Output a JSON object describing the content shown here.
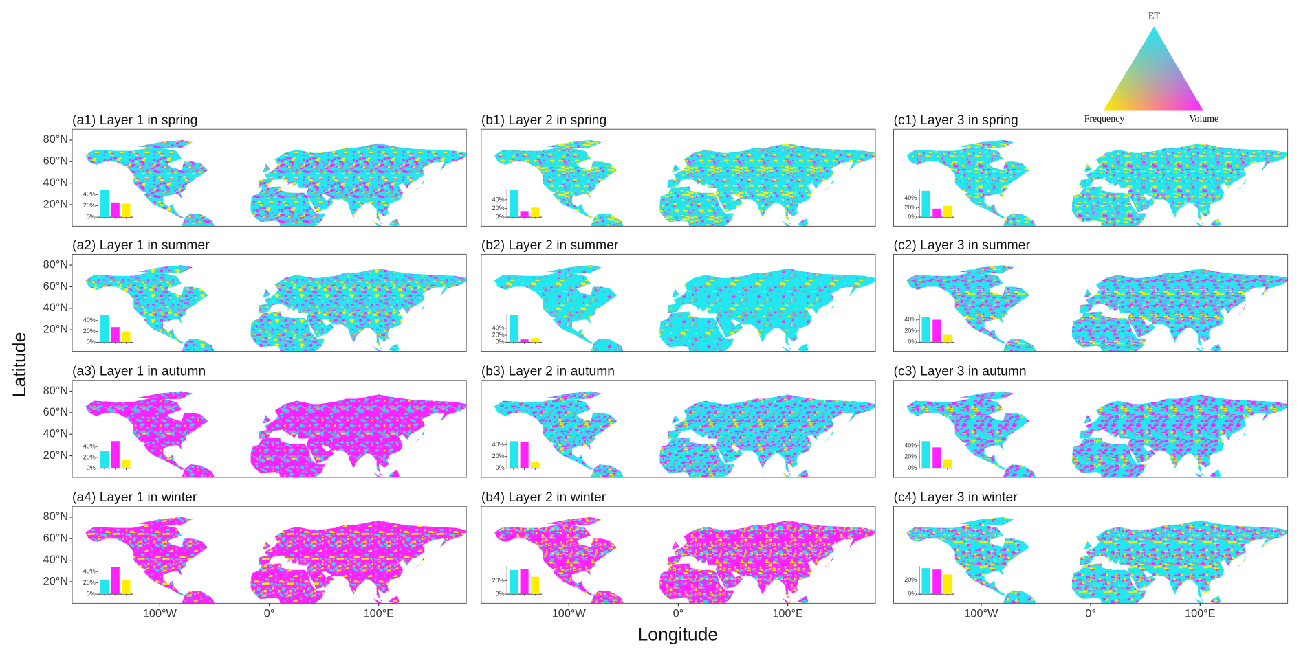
{
  "maps": {
    "xlabel": "Longitude",
    "ylabel": "Latitude",
    "xlim": [
      -180,
      180
    ],
    "ylim": [
      0,
      90
    ],
    "lat_ticks": [
      {
        "value": 20,
        "label": "20°N"
      },
      {
        "value": 40,
        "label": "40°N"
      },
      {
        "value": 60,
        "label": "60°N"
      },
      {
        "value": 80,
        "label": "80°N"
      }
    ],
    "lon_ticks": [
      {
        "value": -100,
        "label": "100°W"
      },
      {
        "value": 0,
        "label": "0°"
      },
      {
        "value": 100,
        "label": "100°E"
      }
    ]
  },
  "legend": {
    "type": "ternary",
    "top": "ET",
    "left": "Frequency",
    "right": "Volume",
    "top_color": "#22e6f0",
    "left_color": "#ffee00",
    "right_color": "#ff22ff"
  },
  "chart_data": [
    {
      "type": "bar",
      "title": "(a1) Layer 1 in spring",
      "categories": [
        null,
        null,
        null
      ],
      "values": [
        48,
        26,
        24
      ],
      "colors": [
        "#22e6f0",
        "#ff22ff",
        "#ffee00"
      ],
      "ylim": [
        0,
        50
      ],
      "yticks": [
        {
          "value": 0,
          "label": "0%"
        },
        {
          "value": 20,
          "label": "20%"
        },
        {
          "value": 40,
          "label": "40%"
        }
      ]
    },
    {
      "type": "bar",
      "title": "(b1) Layer 2 in spring",
      "categories": [
        null,
        null,
        null
      ],
      "values": [
        62,
        14,
        22
      ],
      "colors": [
        "#22e6f0",
        "#ff22ff",
        "#ffee00"
      ],
      "ylim": [
        0,
        65
      ],
      "yticks": [
        {
          "value": 0,
          "label": "0%"
        },
        {
          "value": 20,
          "label": "20%"
        },
        {
          "value": 40,
          "label": "40%"
        }
      ]
    },
    {
      "type": "bar",
      "title": "(c1) Layer 3 in spring",
      "categories": [
        null,
        null,
        null
      ],
      "values": [
        56,
        18,
        24
      ],
      "colors": [
        "#22e6f0",
        "#ff22ff",
        "#ffee00"
      ],
      "ylim": [
        0,
        60
      ],
      "yticks": [
        {
          "value": 0,
          "label": "0%"
        },
        {
          "value": 20,
          "label": "20%"
        },
        {
          "value": 40,
          "label": "40%"
        }
      ]
    },
    {
      "type": "bar",
      "title": "(a2) Layer 1 in summer",
      "categories": [
        null,
        null,
        null
      ],
      "values": [
        50,
        28,
        20
      ],
      "colors": [
        "#22e6f0",
        "#ff22ff",
        "#ffee00"
      ],
      "ylim": [
        0,
        52
      ],
      "yticks": [
        {
          "value": 0,
          "label": "0%"
        },
        {
          "value": 20,
          "label": "20%"
        },
        {
          "value": 40,
          "label": "40%"
        }
      ]
    },
    {
      "type": "bar",
      "title": "(b2) Layer 2 in summer",
      "categories": [
        null,
        null,
        null
      ],
      "values": [
        78,
        8,
        12
      ],
      "colors": [
        "#22e6f0",
        "#ff22ff",
        "#ffee00"
      ],
      "ylim": [
        0,
        80
      ],
      "yticks": [
        {
          "value": 0,
          "label": "0%"
        },
        {
          "value": 20,
          "label": "20%"
        },
        {
          "value": 40,
          "label": "40%"
        }
      ]
    },
    {
      "type": "bar",
      "title": "(c2) Layer 3 in summer",
      "categories": [
        null,
        null,
        null
      ],
      "values": [
        45,
        40,
        13
      ],
      "colors": [
        "#22e6f0",
        "#ff22ff",
        "#ffee00"
      ],
      "ylim": [
        0,
        50
      ],
      "yticks": [
        {
          "value": 0,
          "label": "0%"
        },
        {
          "value": 20,
          "label": "20%"
        },
        {
          "value": 40,
          "label": "40%"
        }
      ]
    },
    {
      "type": "bar",
      "title": "(a3) Layer 1 in autumn",
      "categories": [
        null,
        null,
        null
      ],
      "values": [
        32,
        50,
        15
      ],
      "colors": [
        "#22e6f0",
        "#ff22ff",
        "#ffee00"
      ],
      "ylim": [
        0,
        52
      ],
      "yticks": [
        {
          "value": 0,
          "label": "0%"
        },
        {
          "value": 20,
          "label": "20%"
        },
        {
          "value": 40,
          "label": "40%"
        }
      ]
    },
    {
      "type": "bar",
      "title": "(b3) Layer 2 in autumn",
      "categories": [
        null,
        null,
        null
      ],
      "values": [
        46,
        45,
        10
      ],
      "colors": [
        "#22e6f0",
        "#ff22ff",
        "#ffee00"
      ],
      "ylim": [
        0,
        48
      ],
      "yticks": [
        {
          "value": 0,
          "label": "0%"
        },
        {
          "value": 20,
          "label": "20%"
        },
        {
          "value": 40,
          "label": "40%"
        }
      ]
    },
    {
      "type": "bar",
      "title": "(c3) Layer 3 in autumn",
      "categories": [
        null,
        null,
        null
      ],
      "values": [
        48,
        37,
        16
      ],
      "colors": [
        "#22e6f0",
        "#ff22ff",
        "#ffee00"
      ],
      "ylim": [
        0,
        50
      ],
      "yticks": [
        {
          "value": 0,
          "label": "0%"
        },
        {
          "value": 20,
          "label": "20%"
        },
        {
          "value": 40,
          "label": "40%"
        }
      ]
    },
    {
      "type": "bar",
      "title": "(a4) Layer 1 in winter",
      "categories": [
        null,
        null,
        null
      ],
      "values": [
        26,
        48,
        25
      ],
      "colors": [
        "#22e6f0",
        "#ff22ff",
        "#ffee00"
      ],
      "ylim": [
        0,
        50
      ],
      "yticks": [
        {
          "value": 0,
          "label": "0%"
        },
        {
          "value": 20,
          "label": "20%"
        },
        {
          "value": 40,
          "label": "40%"
        }
      ]
    },
    {
      "type": "bar",
      "title": "(b4) Layer 2 in winter",
      "categories": [
        null,
        null,
        null
      ],
      "values": [
        36,
        38,
        26
      ],
      "colors": [
        "#22e6f0",
        "#ff22ff",
        "#ffee00"
      ],
      "ylim": [
        0,
        42
      ],
      "yticks": [
        {
          "value": 0,
          "label": "0%"
        },
        {
          "value": 20,
          "label": "20%"
        }
      ]
    },
    {
      "type": "bar",
      "title": "(c4) Layer 3 in winter",
      "categories": [
        null,
        null,
        null
      ],
      "values": [
        37,
        35,
        28
      ],
      "colors": [
        "#22e6f0",
        "#ff22ff",
        "#ffee00"
      ],
      "ylim": [
        0,
        40
      ],
      "yticks": [
        {
          "value": 0,
          "label": "0%"
        },
        {
          "value": 20,
          "label": "20%"
        }
      ]
    }
  ]
}
